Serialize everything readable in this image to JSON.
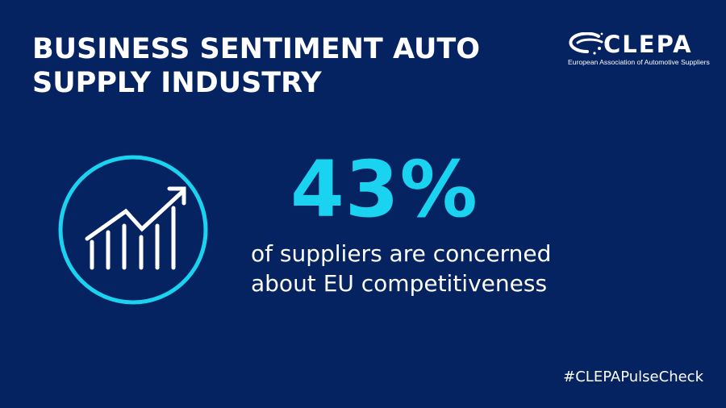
{
  "title": {
    "line1": "BUSINESS SENTIMENT AUTO",
    "line2": "SUPPLY INDUSTRY"
  },
  "logo": {
    "wordmark": "CLEPA",
    "tagline": "European Association of Automotive Suppliers"
  },
  "stat": {
    "value": "43%",
    "description_line1": "of suppliers are concerned",
    "description_line2": "about EU competitiveness"
  },
  "hashtag": "#CLEPAPulseCheck",
  "icon": "growth-chart-icon",
  "colors": {
    "background": "#052261",
    "accent": "#19d3f0",
    "text": "#ffffff"
  }
}
